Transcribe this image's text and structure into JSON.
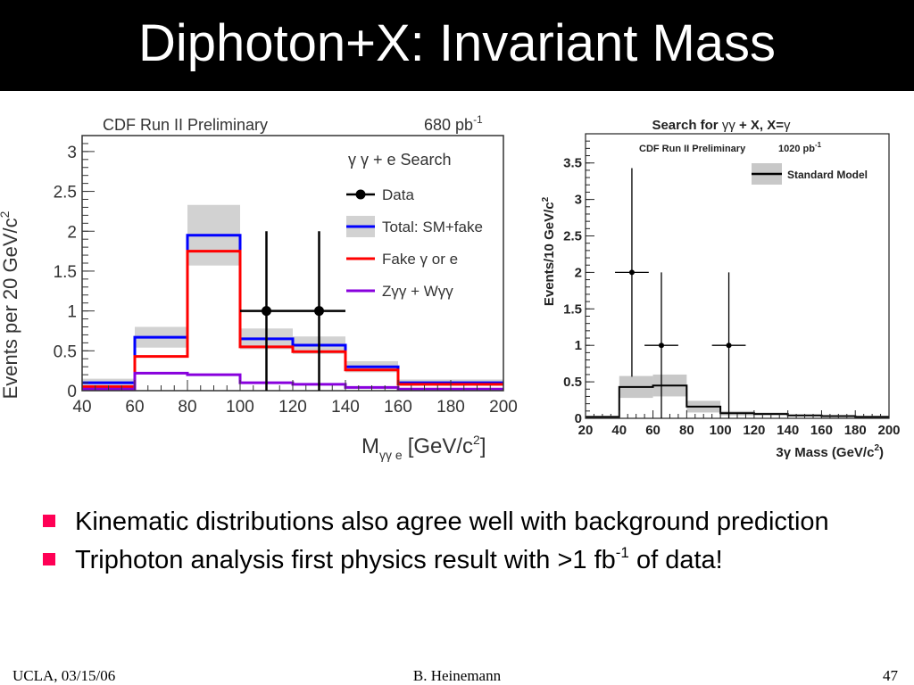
{
  "slide": {
    "title": "Diphoton+X: Invariant Mass",
    "bullets": [
      {
        "text": "Kinematic distributions also agree well with background prediction"
      },
      {
        "pre": "Triphoton analysis first physics result with >1 fb",
        "sup": "-1",
        "post": " of data!"
      }
    ],
    "footer": {
      "left": "UCLA, 03/15/06",
      "center": "B. Heinemann",
      "right": "47"
    },
    "accent_color": "#ff0055"
  },
  "chart_data": [
    {
      "type": "bar",
      "header_left": "CDF Run II Preliminary",
      "header_right": "680 pb",
      "header_right_sup": "-1",
      "legend_title": "γ γ + e  Search",
      "xlabel": "M",
      "xlabel_sub": "γγ e",
      "xlabel_units": "[GeV/c",
      "xlabel_sup": "2",
      "xlabel_close": "]",
      "ylabel": "Events per 20 GeV/c",
      "ylabel_sup": "2",
      "xlim": [
        40,
        200
      ],
      "ylim": [
        0,
        3.2
      ],
      "x_ticks": [
        "40",
        "60",
        "80",
        "100",
        "120",
        "140",
        "160",
        "180",
        "200"
      ],
      "y_ticks": [
        "0",
        "0.5",
        "1",
        "1.5",
        "2",
        "2.5",
        "3"
      ],
      "bin_edges": [
        40,
        60,
        80,
        100,
        120,
        140,
        160,
        200
      ],
      "series": [
        {
          "name": "Total: SM+fake",
          "color": "#0000ff",
          "values": [
            0.1,
            0.67,
            1.95,
            0.65,
            0.57,
            0.3,
            0.1
          ],
          "band": [
            0.05,
            0.13,
            0.38,
            0.13,
            0.11,
            0.07,
            0.04
          ]
        },
        {
          "name": "Fake γ or e",
          "color": "#ff0000",
          "values": [
            0.05,
            0.43,
            1.75,
            0.55,
            0.49,
            0.26,
            0.08
          ]
        },
        {
          "name": "Zγγ + Wγγ",
          "color": "#8800dd",
          "values": [
            0.02,
            0.22,
            0.2,
            0.1,
            0.08,
            0.04,
            0.02
          ]
        }
      ],
      "data": {
        "name": "Data",
        "x": [
          110,
          130
        ],
        "y": [
          1,
          1
        ],
        "yerr": [
          1.0,
          1.0
        ],
        "xerr": [
          10,
          10
        ]
      }
    },
    {
      "type": "bar",
      "title_prefix": "Search for ",
      "title_gg": "γγ",
      "title_mid": " + X, X=",
      "title_g": "γ",
      "subheader": "CDF Run II Preliminary",
      "lumi": "1020 pb",
      "lumi_sup": "-1",
      "legend": "Standard Model",
      "xlabel": "3γ Mass (GeV/c",
      "xlabel_sup": "2",
      "xlabel_close": ")",
      "ylabel": "Events/10 GeV/c",
      "ylabel_sup": "2",
      "xlim": [
        20,
        200
      ],
      "ylim": [
        0,
        3.9
      ],
      "x_ticks": [
        "20",
        "40",
        "60",
        "80",
        "100",
        "120",
        "140",
        "160",
        "180",
        "200"
      ],
      "y_ticks": [
        "0",
        "0.5",
        "1",
        "1.5",
        "2",
        "2.5",
        "3",
        "3.5"
      ],
      "bin_edges": [
        20,
        40,
        60,
        80,
        100,
        120,
        140,
        160,
        180,
        200
      ],
      "sm_values": [
        0.02,
        0.43,
        0.45,
        0.16,
        0.07,
        0.06,
        0.04,
        0.03,
        0.02
      ],
      "sm_band": [
        0.01,
        0.15,
        0.15,
        0.08,
        0.03,
        0.02,
        0.01,
        0.01,
        0.01
      ],
      "data": {
        "x": [
          47.5,
          65,
          105
        ],
        "y": [
          2,
          1,
          1
        ],
        "yerr_up": [
          1.43,
          1.0,
          1.0
        ],
        "yerr_down": [
          1.43,
          1.0,
          1.0
        ],
        "xerr": [
          10,
          10,
          10
        ]
      }
    }
  ]
}
